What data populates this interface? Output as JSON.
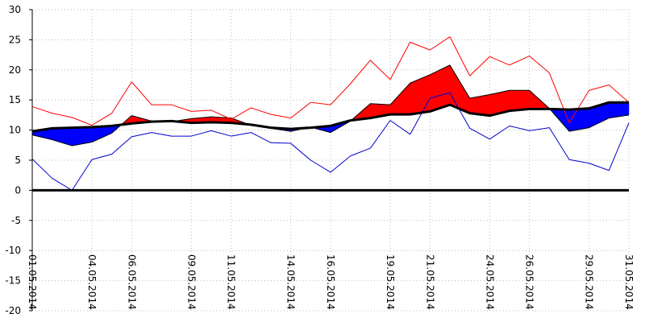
{
  "chart_data": {
    "type": "area",
    "title": "",
    "xlabel": "",
    "ylabel": "",
    "ylim": [
      -20,
      30
    ],
    "yticks": [
      30,
      25,
      20,
      15,
      10,
      5,
      0,
      -5,
      -10,
      -15,
      -20
    ],
    "grid": true,
    "x": [
      "01.05.2014",
      "02.05.2014",
      "03.05.2014",
      "04.05.2014",
      "05.05.2014",
      "06.05.2014",
      "07.05.2014",
      "08.05.2014",
      "09.05.2014",
      "10.05.2014",
      "11.05.2014",
      "12.05.2014",
      "13.05.2014",
      "14.05.2014",
      "15.05.2014",
      "16.05.2014",
      "17.05.2014",
      "18.05.2014",
      "19.05.2014",
      "20.05.2014",
      "21.05.2014",
      "22.05.2014",
      "23.05.2014",
      "24.05.2014",
      "25.05.2014",
      "26.05.2014",
      "27.05.2014",
      "28.05.2014",
      "29.05.2014",
      "30.05.2014",
      "31.05.2014"
    ],
    "xtick_labels": [
      "01.05.2014",
      "04.05.2014",
      "06.05.2014",
      "09.05.2014",
      "11.05.2014",
      "14.05.2014",
      "16.05.2014",
      "19.05.2014",
      "21.05.2014",
      "24.05.2014",
      "26.05.2014",
      "29.05.2014",
      "31.05.2014"
    ],
    "series": [
      {
        "key": "max",
        "values": [
          13.9,
          12.8,
          12.1,
          10.8,
          12.8,
          18.0,
          14.2,
          14.2,
          13.1,
          13.3,
          11.8,
          13.7,
          12.6,
          12.0,
          14.6,
          14.2,
          17.7,
          21.6,
          18.4,
          24.6,
          23.3,
          25.5,
          19.0,
          22.2,
          20.8,
          22.3,
          19.5,
          11.2,
          16.6,
          17.5,
          14.6
        ]
      },
      {
        "key": "mean",
        "values": [
          9.2,
          8.4,
          7.4,
          8.0,
          9.5,
          12.4,
          11.5,
          11.4,
          11.9,
          12.2,
          12.0,
          10.8,
          10.3,
          9.8,
          10.5,
          9.6,
          11.5,
          14.4,
          14.2,
          17.8,
          19.2,
          20.8,
          15.3,
          15.9,
          16.6,
          16.6,
          13.6,
          9.8,
          10.4,
          12.0,
          12.5
        ]
      },
      {
        "key": "norm",
        "values": [
          9.8,
          10.3,
          10.4,
          10.5,
          10.7,
          11.1,
          11.4,
          11.5,
          11.2,
          11.3,
          11.2,
          10.9,
          10.4,
          10.2,
          10.4,
          10.7,
          11.6,
          12.0,
          12.6,
          12.6,
          13.1,
          14.2,
          12.8,
          12.4,
          13.2,
          13.5,
          13.5,
          13.4,
          13.6,
          14.6,
          14.6
        ]
      },
      {
        "key": "min",
        "values": [
          5.2,
          2.0,
          0.0,
          5.1,
          6.0,
          8.9,
          9.6,
          9.0,
          9.0,
          9.9,
          9.0,
          9.6,
          7.9,
          7.8,
          5.0,
          3.0,
          5.7,
          7.0,
          11.6,
          9.3,
          15.3,
          16.2,
          10.3,
          8.5,
          10.7,
          9.9,
          10.4,
          5.1,
          4.5,
          3.3,
          11.2
        ]
      }
    ],
    "colors": {
      "above_norm": "#ff0000",
      "below_norm": "#0000ff",
      "max_line": "#ff0000",
      "min_line": "#0000cc",
      "norm_line": "#000000",
      "zero_line": "#000000"
    }
  }
}
